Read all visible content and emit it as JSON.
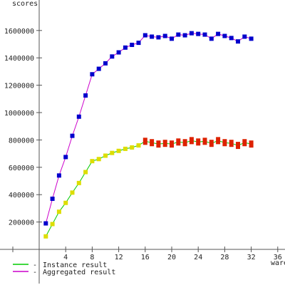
{
  "chart_data": {
    "type": "line",
    "title": "",
    "xlabel": "wares",
    "ylabel": "scores",
    "xlim": [
      0,
      36
    ],
    "ylim": [
      0,
      1700000
    ],
    "xticks": [
      4,
      8,
      12,
      16,
      20,
      24,
      28,
      32,
      36
    ],
    "yticks": [
      200000,
      400000,
      600000,
      800000,
      1000000,
      1200000,
      1400000,
      1600000
    ],
    "legend": {
      "placement": "bottom-left"
    },
    "colors": {
      "instance_line": "#00cc00",
      "instance_marker_low": "#dddd00",
      "instance_marker_high": "#dd2200",
      "aggregated_line": "#cc00cc",
      "aggregated_marker": "#0000cc",
      "axis": "#555555"
    },
    "x": [
      1,
      2,
      3,
      4,
      5,
      6,
      7,
      8,
      9,
      10,
      11,
      12,
      13,
      14,
      15,
      16,
      17,
      18,
      19,
      20,
      21,
      22,
      23,
      24,
      25,
      26,
      27,
      28,
      29,
      30,
      31,
      32
    ],
    "series": [
      {
        "name": "Instance result",
        "values": [
          95000,
          185000,
          275000,
          340000,
          415000,
          485000,
          565000,
          645000,
          660000,
          685000,
          705000,
          720000,
          735000,
          745000,
          760000,
          790000,
          780000,
          770000,
          775000,
          770000,
          785000,
          780000,
          795000,
          785000,
          790000,
          775000,
          795000,
          780000,
          775000,
          760000,
          780000,
          770000
        ]
      },
      {
        "name": "Aggregated result",
        "values": [
          190000,
          370000,
          540000,
          675000,
          830000,
          970000,
          1125000,
          1280000,
          1320000,
          1360000,
          1410000,
          1440000,
          1475000,
          1495000,
          1510000,
          1565000,
          1555000,
          1550000,
          1560000,
          1540000,
          1570000,
          1565000,
          1580000,
          1575000,
          1570000,
          1540000,
          1575000,
          1560000,
          1545000,
          1520000,
          1555000,
          1540000
        ]
      }
    ]
  }
}
